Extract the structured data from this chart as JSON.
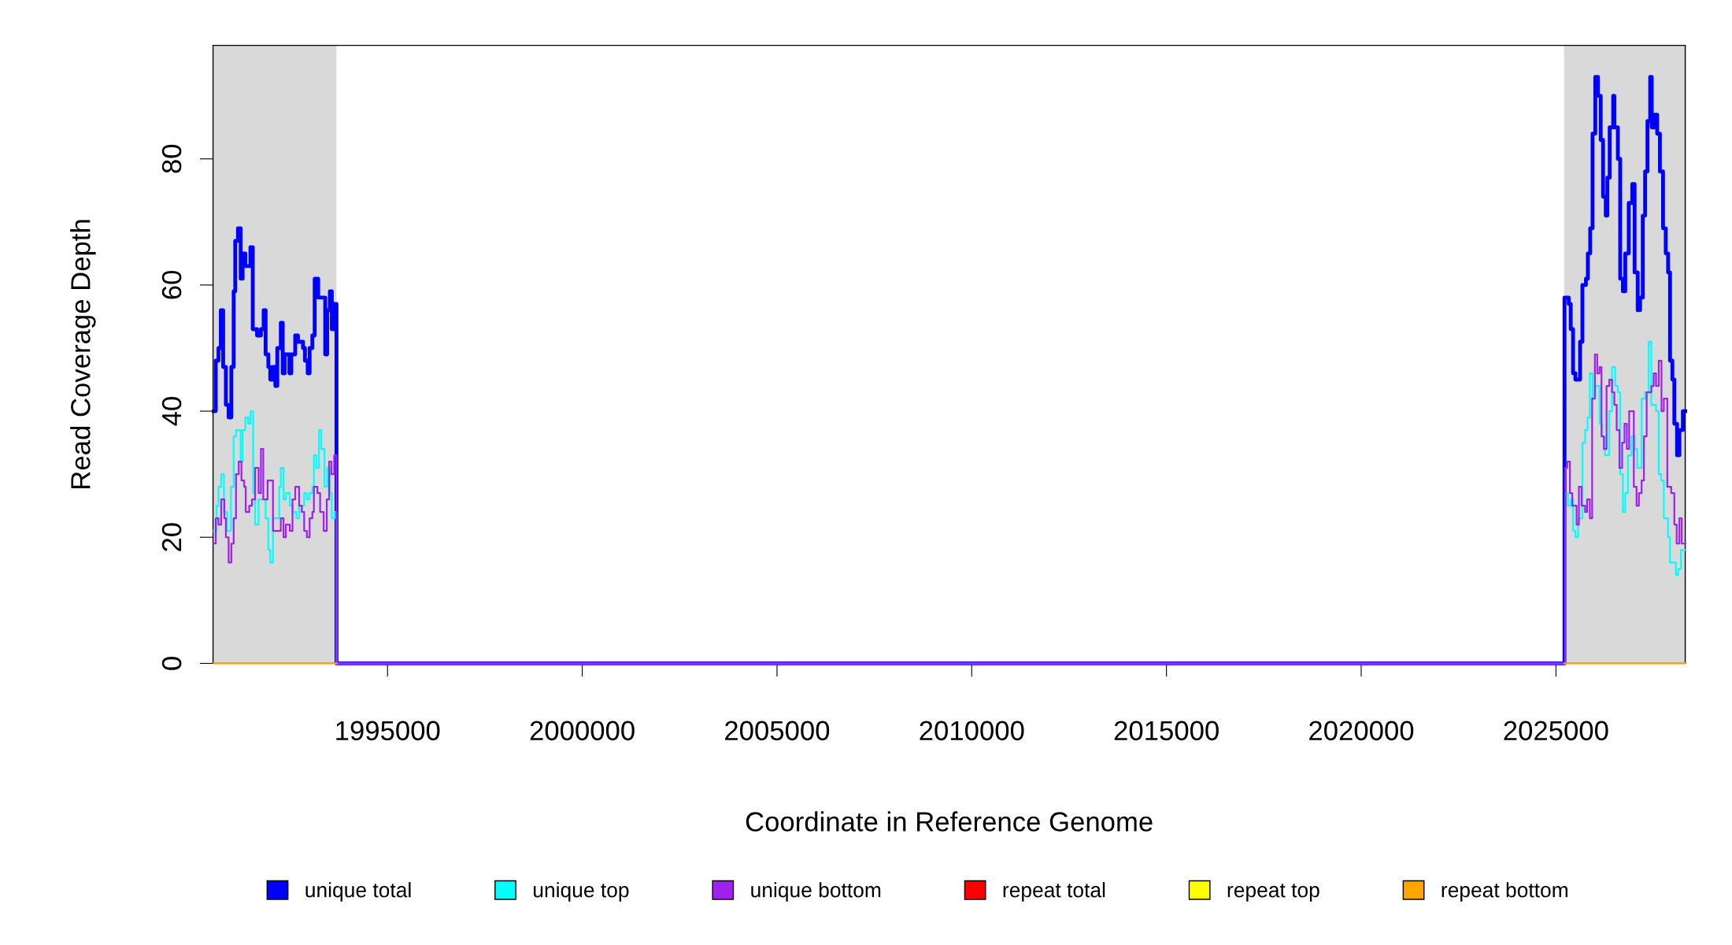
{
  "chart_data": {
    "type": "step",
    "xlabel": "Coordinate in Reference Genome",
    "ylabel": "Read Coverage Depth",
    "xlim": [
      1990520,
      2028320
    ],
    "ylim": [
      0,
      98
    ],
    "xticks": [
      1995000,
      2000000,
      2005000,
      2010000,
      2015000,
      2020000,
      2025000
    ],
    "yticks": [
      0,
      20,
      40,
      60,
      80
    ],
    "grid": false,
    "legend": "bottom",
    "marker": "none",
    "line_style": "solid",
    "bands": [
      {
        "axis": "x",
        "from": 1990520,
        "to": 1993690,
        "color": "#d9d9d9"
      },
      {
        "axis": "x",
        "from": 2025210,
        "to": 2028320,
        "color": "#d9d9d9"
      }
    ],
    "series": [
      {
        "name": "unique total",
        "color": "#0000ff",
        "x": [
          1990540,
          1990590,
          1990660,
          1990720,
          1990780,
          1990850,
          1990920,
          1990990,
          1991050,
          1991090,
          1991160,
          1991230,
          1991280,
          1991350,
          1991480,
          1991540,
          1991650,
          1991750,
          1991820,
          1991870,
          1991940,
          1991990,
          1992060,
          1992120,
          1992170,
          1992260,
          1992310,
          1992360,
          1992480,
          1992530,
          1992630,
          1992700,
          1992830,
          1992880,
          1992950,
          1993000,
          1993070,
          1993130,
          1993220,
          1993340,
          1993400,
          1993450,
          1993520,
          1993570,
          1993640,
          1993690,
          2025220,
          2025330,
          2025380,
          2025440,
          2025500,
          2025620,
          2025680,
          2025770,
          2025820,
          2025880,
          2025940,
          2026010,
          2026080,
          2026150,
          2026210,
          2026280,
          2026320,
          2026380,
          2026470,
          2026500,
          2026590,
          2026650,
          2026720,
          2026780,
          2026870,
          2026960,
          2027020,
          2027100,
          2027160,
          2027230,
          2027290,
          2027350,
          2027420,
          2027460,
          2027530,
          2027600,
          2027670,
          2027750,
          2027820,
          2027880,
          2027930,
          2027990,
          2028040,
          2028110,
          2028170,
          2028260
        ],
        "values": [
          40,
          48,
          50,
          56,
          47,
          41,
          39,
          47,
          59,
          67,
          69,
          61,
          65,
          63,
          66,
          53,
          52,
          53,
          56,
          49,
          47,
          45,
          47,
          44,
          50,
          54,
          46,
          49,
          46,
          49,
          52,
          51,
          50,
          48,
          46,
          50,
          52,
          61,
          58,
          58,
          49,
          56,
          59,
          53,
          57,
          0,
          58,
          57,
          53,
          46,
          45,
          51,
          60,
          61,
          65,
          69,
          84,
          93,
          90,
          83,
          74,
          71,
          77,
          85,
          90,
          85,
          80,
          61,
          59,
          65,
          73,
          76,
          62,
          56,
          58,
          71,
          78,
          86,
          93,
          85,
          87,
          84,
          78,
          69,
          65,
          62,
          48,
          45,
          38,
          33,
          37,
          40
        ]
      },
      {
        "name": "unique top",
        "color": "#00ffff",
        "x": [
          1990540,
          1990610,
          1990660,
          1990730,
          1990800,
          1990880,
          1990980,
          1991050,
          1991110,
          1991230,
          1991280,
          1991350,
          1991420,
          1991480,
          1991550,
          1991600,
          1991690,
          1991870,
          1991940,
          1991990,
          1992060,
          1992220,
          1992260,
          1992330,
          1992390,
          1992490,
          1992560,
          1992660,
          1992730,
          1992860,
          1992930,
          1993000,
          1993070,
          1993110,
          1993170,
          1993240,
          1993300,
          1993380,
          1993450,
          1993520,
          1993570,
          1993640,
          1993690,
          2025240,
          2025310,
          2025380,
          2025440,
          2025500,
          2025570,
          2025680,
          2025750,
          2025810,
          2025870,
          2025940,
          2026010,
          2026120,
          2026190,
          2026260,
          2026370,
          2026440,
          2026520,
          2026590,
          2026650,
          2026720,
          2026780,
          2026850,
          2026940,
          2027020,
          2027090,
          2027200,
          2027290,
          2027380,
          2027450,
          2027570,
          2027640,
          2027700,
          2027770,
          2027880,
          2027930,
          2028080,
          2028140,
          2028210
        ],
        "values": [
          21,
          25,
          28,
          30,
          24,
          21,
          28,
          36,
          37,
          32,
          37,
          39,
          38,
          40,
          27,
          22,
          26,
          23,
          18,
          16,
          23,
          28,
          31,
          26,
          27,
          25,
          24,
          23,
          25,
          27,
          26,
          27,
          28,
          33,
          31,
          37,
          34,
          28,
          31,
          27,
          23,
          24,
          0,
          27,
          25,
          26,
          21,
          20,
          23,
          35,
          37,
          39,
          46,
          42,
          44,
          38,
          36,
          33,
          40,
          47,
          44,
          43,
          30,
          24,
          27,
          33,
          36,
          34,
          31,
          42,
          43,
          51,
          41,
          40,
          30,
          29,
          23,
          20,
          16,
          14,
          15,
          18
        ]
      },
      {
        "name": "unique bottom",
        "color": "#a020f0",
        "x": [
          1990540,
          1990590,
          1990660,
          1990730,
          1990810,
          1990850,
          1990920,
          1990990,
          1991050,
          1991110,
          1991180,
          1991250,
          1991320,
          1991360,
          1991450,
          1991520,
          1991600,
          1991690,
          1991750,
          1991810,
          1991920,
          1992060,
          1992260,
          1992330,
          1992390,
          1992490,
          1992560,
          1992630,
          1992730,
          1992800,
          1992860,
          1992930,
          1993000,
          1993070,
          1993110,
          1993200,
          1993270,
          1993360,
          1993440,
          1993500,
          1993560,
          1993630,
          1993690,
          2025240,
          2025290,
          2025360,
          2025420,
          2025530,
          2025590,
          2025660,
          2025750,
          2025800,
          2025870,
          2025930,
          2026000,
          2026060,
          2026120,
          2026170,
          2026230,
          2026300,
          2026370,
          2026440,
          2026500,
          2026560,
          2026630,
          2026700,
          2026760,
          2026820,
          2026880,
          2027000,
          2027070,
          2027130,
          2027200,
          2027260,
          2027330,
          2027450,
          2027510,
          2027570,
          2027640,
          2027710,
          2027770,
          2027860,
          2027960,
          2028040,
          2028100,
          2028170,
          2028230
        ],
        "values": [
          19,
          23,
          22,
          26,
          23,
          20,
          16,
          19,
          23,
          30,
          32,
          29,
          28,
          24,
          25,
          26,
          31,
          27,
          34,
          26,
          29,
          21,
          23,
          20,
          22,
          21,
          26,
          28,
          25,
          24,
          21,
          20,
          23,
          24,
          28,
          27,
          24,
          21,
          26,
          32,
          30,
          33,
          0,
          31,
          32,
          27,
          25,
          22,
          28,
          25,
          24,
          26,
          23,
          42,
          49,
          46,
          47,
          36,
          34,
          44,
          45,
          43,
          41,
          37,
          31,
          35,
          38,
          34,
          40,
          28,
          25,
          27,
          29,
          36,
          43,
          44,
          46,
          44,
          48,
          40,
          42,
          28,
          27,
          22,
          19,
          23,
          19
        ]
      },
      {
        "name": "repeat total",
        "color": "#ff0000"
      },
      {
        "name": "repeat top",
        "color": "#ffff00"
      },
      {
        "name": "repeat bottom",
        "color": "#ffa500",
        "x": [
          1990540,
          1993690,
          2025220,
          2028320
        ],
        "values": [
          0,
          null,
          0,
          0
        ]
      }
    ]
  }
}
